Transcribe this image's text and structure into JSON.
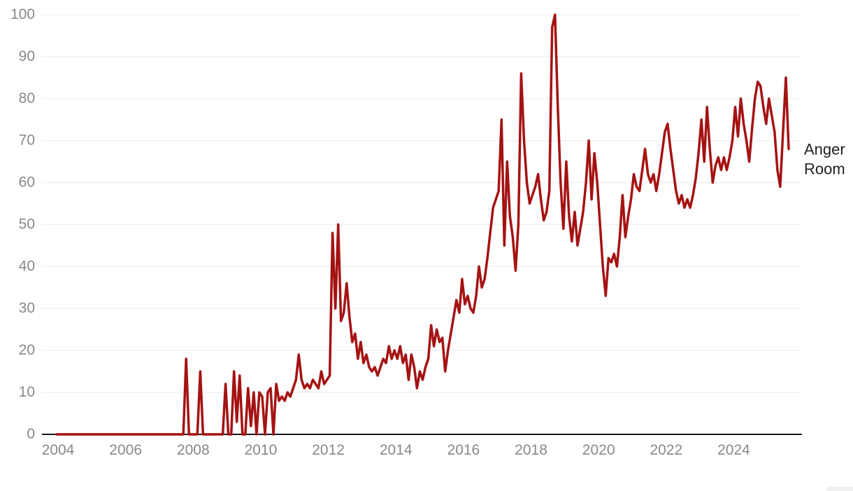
{
  "chart_data": {
    "type": "line",
    "title": "",
    "series_label": "Anger Room",
    "x_unit": "month",
    "x_range": [
      "2004-01",
      "2025-09"
    ],
    "x_tick_labels": [
      "2004",
      "2006",
      "2008",
      "2010",
      "2012",
      "2014",
      "2016",
      "2018",
      "2020",
      "2022",
      "2024"
    ],
    "y_tick_labels": [
      "0",
      "10",
      "20",
      "30",
      "40",
      "50",
      "60",
      "70",
      "80",
      "90",
      "100"
    ],
    "ylim": [
      0,
      100
    ],
    "grid": true,
    "legend_position": "right",
    "line_color": "#a51212",
    "axis_color": "#161616",
    "grid_color": "#e8e8e8",
    "tick_text_color": "#85898c",
    "label_text_color": "#1f1f1f",
    "series": [
      {
        "name": "Anger Room",
        "values": [
          0,
          0,
          0,
          0,
          0,
          0,
          0,
          0,
          0,
          0,
          0,
          0,
          0,
          0,
          0,
          0,
          0,
          0,
          0,
          0,
          0,
          0,
          0,
          0,
          0,
          0,
          0,
          0,
          0,
          0,
          0,
          0,
          0,
          0,
          0,
          0,
          0,
          0,
          0,
          0,
          0,
          0,
          0,
          0,
          0,
          0,
          18,
          0,
          0,
          0,
          0,
          15,
          0,
          0,
          0,
          0,
          0,
          0,
          0,
          0,
          12,
          0,
          0,
          15,
          3,
          14,
          0,
          0,
          11,
          2,
          10,
          0,
          10,
          9,
          0,
          10,
          11,
          0,
          12,
          8,
          9,
          8,
          10,
          9,
          11,
          13,
          19,
          13,
          11,
          12,
          11,
          13,
          12,
          11,
          15,
          12,
          13,
          14,
          48,
          30,
          50,
          27,
          29,
          36,
          28,
          22,
          24,
          18,
          22,
          17,
          19,
          16,
          15,
          16,
          14,
          16,
          18,
          17,
          21,
          18,
          20,
          18,
          21,
          17,
          19,
          13,
          19,
          16,
          11,
          15,
          13,
          16,
          18,
          26,
          21,
          25,
          22,
          23,
          15,
          20,
          24,
          28,
          32,
          29,
          37,
          31,
          33,
          30,
          29,
          33,
          40,
          35,
          37,
          42,
          48,
          54,
          56,
          58,
          75,
          45,
          65,
          52,
          47,
          39,
          50,
          86,
          70,
          60,
          55,
          57,
          59,
          62,
          56,
          51,
          53,
          58,
          97,
          100,
          78,
          60,
          49,
          65,
          52,
          46,
          53,
          45,
          49,
          53,
          60,
          70,
          56,
          67,
          60,
          50,
          40,
          33,
          42,
          41,
          43,
          40,
          47,
          57,
          47,
          52,
          56,
          62,
          59,
          58,
          63,
          68,
          62,
          60,
          62,
          58,
          62,
          67,
          72,
          74,
          68,
          63,
          58,
          55,
          57,
          54,
          56,
          54,
          57,
          61,
          67,
          75,
          65,
          78,
          68,
          60,
          64,
          66,
          63,
          66,
          63,
          66,
          70,
          78,
          71,
          80,
          74,
          70,
          65,
          73,
          80,
          84,
          83,
          78,
          74,
          80,
          76,
          72,
          63,
          59,
          72,
          85,
          68
        ]
      }
    ]
  }
}
